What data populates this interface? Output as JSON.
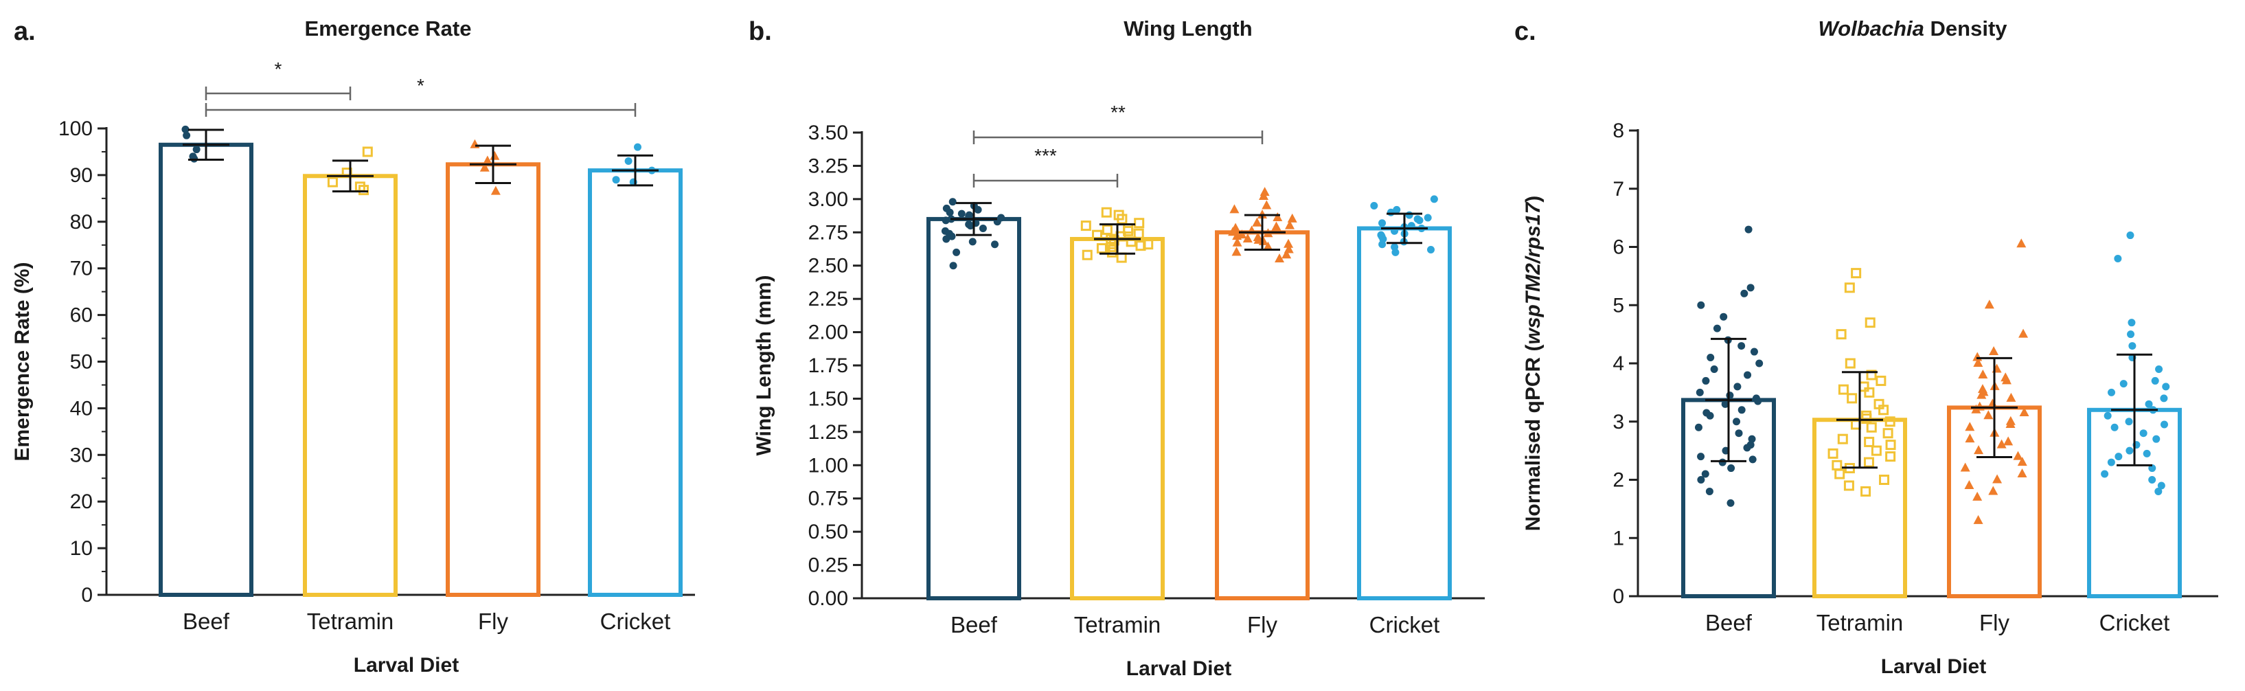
{
  "chart_data": [
    {
      "panel": "a.",
      "type": "bar",
      "title": "Emergence Rate",
      "title_parts": [
        {
          "text": "Emergence Rate",
          "italic": false
        }
      ],
      "xlabel": "Larval Diet",
      "ylabel": "Emergence Rate (%)",
      "ylabel_parts": [
        {
          "text": "Emergence Rate (%)",
          "italic": false
        }
      ],
      "categories": [
        "Beef",
        "Tetramin",
        "Fly",
        "Cricket"
      ],
      "colors": [
        "#1b4a66",
        "#f2c234",
        "#ef7d2b",
        "#2ea6da"
      ],
      "markers": [
        "circle",
        "square-open",
        "triangle",
        "circle"
      ],
      "means": [
        96.5,
        89.8,
        92.3,
        91.0
      ],
      "sd": [
        3.2,
        3.3,
        4.0,
        3.2
      ],
      "points": [
        [
          99.8,
          94.0,
          98.5,
          95.5,
          93.5
        ],
        [
          95.0,
          87.5,
          88.5,
          90.5,
          86.8
        ],
        [
          96.5,
          86.5,
          93.0,
          91.5,
          94.0
        ],
        [
          96.0,
          88.5,
          93.0,
          91.0,
          89.0
        ]
      ],
      "ylim": [
        0,
        100
      ],
      "yticks": [
        0,
        10,
        20,
        30,
        40,
        50,
        60,
        70,
        80,
        90,
        100
      ],
      "ytick_labels": [
        "0",
        "10",
        "20",
        "30",
        "40",
        "50",
        "60",
        "70",
        "80",
        "90",
        "100"
      ],
      "minor_ticks": true,
      "significance": [
        {
          "from": 0,
          "to": 1,
          "label": "*"
        },
        {
          "from": 0,
          "to": 3,
          "label": "*"
        }
      ]
    },
    {
      "panel": "b.",
      "type": "bar",
      "title": "Wing Length",
      "title_parts": [
        {
          "text": "Wing Length",
          "italic": false
        }
      ],
      "xlabel": "Larval Diet",
      "ylabel": "Wing Length (mm)",
      "ylabel_parts": [
        {
          "text": "Wing Length (mm)",
          "italic": false
        }
      ],
      "categories": [
        "Beef",
        "Tetramin",
        "Fly",
        "Cricket"
      ],
      "colors": [
        "#1b4a66",
        "#f2c234",
        "#ef7d2b",
        "#2ea6da"
      ],
      "markers": [
        "circle",
        "square-open",
        "triangle",
        "circle"
      ],
      "means": [
        2.85,
        2.7,
        2.75,
        2.78
      ],
      "sd": [
        0.12,
        0.11,
        0.13,
        0.11
      ],
      "points": [
        [
          2.98,
          2.95,
          2.92,
          2.9,
          2.88,
          2.86,
          2.85,
          2.84,
          2.83,
          2.82,
          2.8,
          2.78,
          2.76,
          2.74,
          2.72,
          2.7,
          2.68,
          2.66,
          2.93,
          2.89,
          2.87,
          2.81,
          2.6,
          2.5
        ],
        [
          2.9,
          2.88,
          2.85,
          2.82,
          2.8,
          2.78,
          2.76,
          2.74,
          2.72,
          2.7,
          2.68,
          2.66,
          2.64,
          2.62,
          2.6,
          2.58,
          2.77,
          2.73,
          2.69,
          2.65,
          2.63,
          2.56
        ],
        [
          3.05,
          3.02,
          2.95,
          2.92,
          2.88,
          2.85,
          2.82,
          2.8,
          2.78,
          2.76,
          2.75,
          2.74,
          2.73,
          2.72,
          2.7,
          2.68,
          2.66,
          2.64,
          2.62,
          2.6,
          2.58,
          2.79,
          2.71,
          2.69,
          2.67,
          2.86,
          2.55
        ],
        [
          3.0,
          2.95,
          2.92,
          2.9,
          2.88,
          2.86,
          2.84,
          2.82,
          2.8,
          2.78,
          2.76,
          2.74,
          2.72,
          2.7,
          2.68,
          2.66,
          2.64,
          2.62,
          2.85,
          2.79,
          2.73,
          2.6
        ]
      ],
      "ylim": [
        0,
        3.5
      ],
      "yticks": [
        0,
        0.25,
        0.5,
        0.75,
        1.0,
        1.25,
        1.5,
        1.75,
        2.0,
        2.25,
        2.5,
        2.75,
        3.0,
        3.25,
        3.5
      ],
      "ytick_labels": [
        "0.00",
        "0.25",
        "0.50",
        "0.75",
        "1.00",
        "1.25",
        "1.50",
        "1.75",
        "2.00",
        "2.25",
        "2.50",
        "2.75",
        "3.00",
        "3.25",
        "3.50"
      ],
      "minor_ticks": false,
      "significance": [
        {
          "from": 0,
          "to": 1,
          "label": "***"
        },
        {
          "from": 0,
          "to": 2,
          "label": "**"
        }
      ]
    },
    {
      "panel": "c.",
      "type": "bar",
      "title": "Wolbachia Density",
      "title_parts": [
        {
          "text": "Wolbachia",
          "italic": true
        },
        {
          "text": " Density",
          "italic": false
        }
      ],
      "xlabel": "Larval Diet",
      "ylabel": "Normalised qPCR (wspTM2/rps17)",
      "ylabel_parts": [
        {
          "text": "Normalised qPCR (",
          "italic": false
        },
        {
          "text": "wspTM2/rps17",
          "italic": true
        },
        {
          "text": ")",
          "italic": false
        }
      ],
      "categories": [
        "Beef",
        "Tetramin",
        "Fly",
        "Cricket"
      ],
      "colors": [
        "#1b4a66",
        "#f2c234",
        "#ef7d2b",
        "#2ea6da"
      ],
      "markers": [
        "circle",
        "square-open",
        "triangle",
        "circle"
      ],
      "means": [
        3.37,
        3.03,
        3.24,
        3.2
      ],
      "sd": [
        1.05,
        0.82,
        0.85,
        0.95
      ],
      "points": [
        [
          6.3,
          5.3,
          5.2,
          5.0,
          4.8,
          4.6,
          4.4,
          4.2,
          4.1,
          4.0,
          3.9,
          3.8,
          3.7,
          3.6,
          3.5,
          3.45,
          3.4,
          3.35,
          3.3,
          3.2,
          3.1,
          3.0,
          2.9,
          2.8,
          2.7,
          2.6,
          2.5,
          2.4,
          2.35,
          2.3,
          2.2,
          2.1,
          2.0,
          1.8,
          1.6,
          3.15,
          2.55,
          4.3
        ],
        [
          5.55,
          5.3,
          4.7,
          4.5,
          4.0,
          3.8,
          3.7,
          3.6,
          3.5,
          3.4,
          3.3,
          3.2,
          3.1,
          3.0,
          2.9,
          2.8,
          2.7,
          2.6,
          2.5,
          2.4,
          2.3,
          2.25,
          2.2,
          2.1,
          2.0,
          1.9,
          1.8,
          3.05,
          2.65,
          2.45,
          3.55,
          2.95
        ],
        [
          6.05,
          5.0,
          4.5,
          4.2,
          4.0,
          3.9,
          3.8,
          3.7,
          3.6,
          3.5,
          3.4,
          3.3,
          3.25,
          3.2,
          3.1,
          3.0,
          2.9,
          2.8,
          2.7,
          2.6,
          2.5,
          2.4,
          2.3,
          2.2,
          2.1,
          2.0,
          1.9,
          1.8,
          1.7,
          1.3,
          3.45,
          3.15,
          2.65,
          3.55,
          2.95,
          4.1,
          3.75
        ],
        [
          6.2,
          5.8,
          4.7,
          4.5,
          4.3,
          4.1,
          3.9,
          3.7,
          3.6,
          3.5,
          3.3,
          3.2,
          3.1,
          3.0,
          2.9,
          2.8,
          2.7,
          2.6,
          2.5,
          2.4,
          2.3,
          2.2,
          2.1,
          2.0,
          1.9,
          1.8,
          3.4,
          2.95,
          2.45,
          3.65
        ]
      ],
      "ylim": [
        0,
        8
      ],
      "yticks": [
        0,
        1,
        2,
        3,
        4,
        5,
        6,
        7,
        8
      ],
      "ytick_labels": [
        "0",
        "1",
        "2",
        "3",
        "4",
        "5",
        "6",
        "7",
        "8"
      ],
      "minor_ticks": false,
      "significance": []
    }
  ]
}
